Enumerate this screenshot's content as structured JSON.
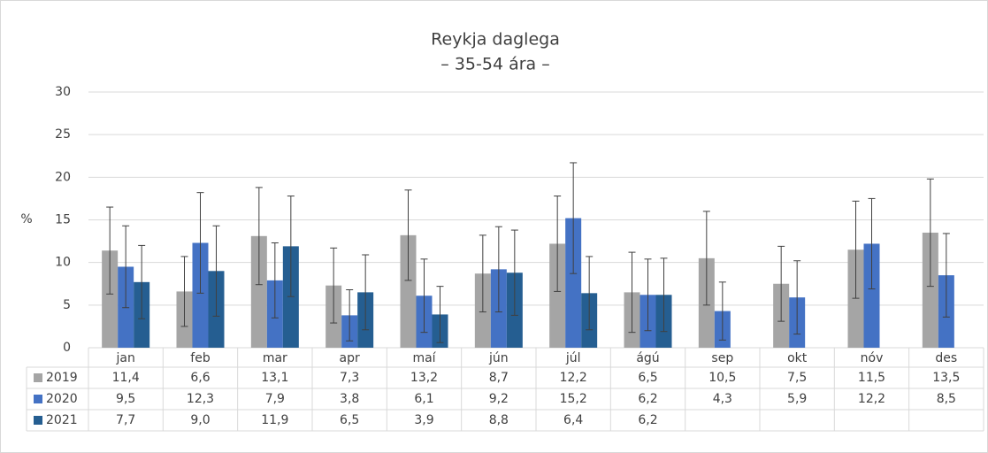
{
  "chart_data": {
    "type": "bar",
    "title": "Reykja daglega",
    "subtitle": "– 35-54 ára –",
    "y_label": "%",
    "categories": [
      "jan",
      "feb",
      "mar",
      "apr",
      "maí",
      "jún",
      "júl",
      "ágú",
      "sep",
      "okt",
      "nóv",
      "des"
    ],
    "series": [
      {
        "name": "2019",
        "color": "#a5a5a5",
        "values": [
          11.4,
          6.6,
          13.1,
          7.3,
          13.2,
          8.7,
          12.2,
          6.5,
          10.5,
          7.5,
          11.5,
          13.5
        ],
        "value_labels": [
          "11,4",
          "6,6",
          "13,1",
          "7,3",
          "13,2",
          "8,7",
          "12,2",
          "6,5",
          "10,5",
          "7,5",
          "11,5",
          "13,5"
        ],
        "errors": [
          5.1,
          4.1,
          5.7,
          4.4,
          5.3,
          4.5,
          5.6,
          4.7,
          5.5,
          4.4,
          5.7,
          6.3
        ]
      },
      {
        "name": "2020",
        "color": "#4472c4",
        "values": [
          9.5,
          12.3,
          7.9,
          3.8,
          6.1,
          9.2,
          15.2,
          6.2,
          4.3,
          5.9,
          12.2,
          8.5
        ],
        "value_labels": [
          "9,5",
          "12,3",
          "7,9",
          "3,8",
          "6,1",
          "9,2",
          "15,2",
          "6,2",
          "4,3",
          "5,9",
          "12,2",
          "8,5"
        ],
        "errors": [
          4.8,
          5.9,
          4.4,
          3.0,
          4.3,
          5.0,
          6.5,
          4.2,
          3.4,
          4.3,
          5.3,
          4.9
        ]
      },
      {
        "name": "2021",
        "color": "#255e91",
        "values": [
          7.7,
          9.0,
          11.9,
          6.5,
          3.9,
          8.8,
          6.4,
          6.2,
          null,
          null,
          null,
          null
        ],
        "value_labels": [
          "7,7",
          "9,0",
          "11,9",
          "6,5",
          "3,9",
          "8,8",
          "6,4",
          "6,2",
          null,
          null,
          null,
          null
        ],
        "errors": [
          4.3,
          5.3,
          5.9,
          4.4,
          3.3,
          5.0,
          4.3,
          4.3,
          null,
          null,
          null,
          null
        ]
      }
    ],
    "ylim": [
      0,
      30
    ],
    "yticks": [
      0,
      5,
      10,
      15,
      20,
      25,
      30
    ],
    "grid": true
  }
}
